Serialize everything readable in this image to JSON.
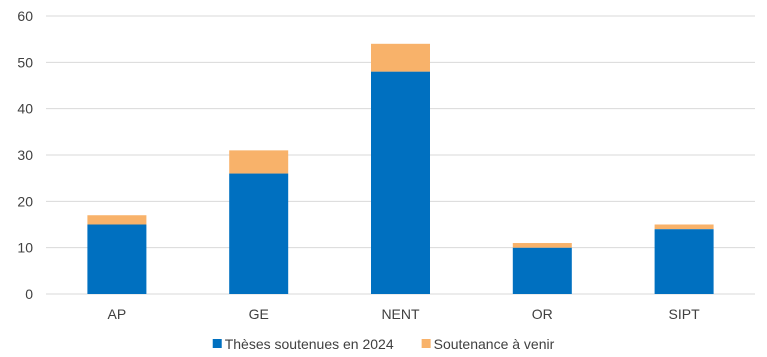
{
  "chart_data": {
    "type": "bar",
    "stacked": true,
    "categories": [
      "AP",
      "GE",
      "NENT",
      "OR",
      "SIPT"
    ],
    "series": [
      {
        "name": "Thèses soutenues en 2024",
        "values": [
          15,
          26,
          48,
          10,
          14
        ],
        "color": "#0070C0"
      },
      {
        "name": "Soutenance à venir",
        "values": [
          2,
          5,
          6,
          1,
          1
        ],
        "color": "#F8B26A"
      }
    ],
    "ylim": [
      0,
      60
    ],
    "yticks": [
      0,
      10,
      20,
      30,
      40,
      50,
      60
    ],
    "grid": true,
    "legend": "bottom-center",
    "gridColor": "#D9D9D9",
    "textColor": "#404040"
  }
}
